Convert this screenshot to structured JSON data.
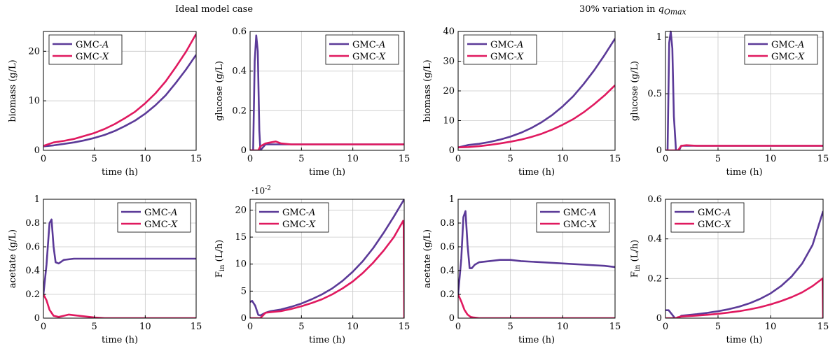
{
  "titles": {
    "left": "Ideal model case",
    "right": "30% variation in q_Omax"
  },
  "colors": {
    "gmc_a": "#5b3a98",
    "gmc_x": "#e0195f",
    "grid": "#c8c8c8"
  },
  "chart_data": [
    {
      "id": "p1",
      "type": "line",
      "ylabel": "biomass (g/L)",
      "xlabel": "time (h)",
      "xlim": [
        0,
        15
      ],
      "ylim": [
        0,
        24
      ],
      "xticks": [
        0,
        5,
        10,
        15
      ],
      "yticks": [
        0,
        10,
        20
      ],
      "legend": "top-left",
      "grid": true,
      "series": [
        {
          "name": "GMC-A",
          "x": [
            0,
            1,
            2,
            3,
            4,
            5,
            6,
            7,
            8,
            9,
            10,
            11,
            12,
            13,
            14,
            15
          ],
          "y": [
            0.8,
            1.0,
            1.3,
            1.6,
            2.0,
            2.5,
            3.1,
            3.9,
            4.9,
            6.0,
            7.4,
            9.1,
            11.1,
            13.6,
            16.3,
            19.3
          ]
        },
        {
          "name": "GMC-X",
          "x": [
            0,
            1,
            2,
            3,
            4,
            5,
            6,
            7,
            8,
            9,
            10,
            11,
            12,
            13,
            14,
            15
          ],
          "y": [
            0.9,
            1.6,
            1.9,
            2.3,
            2.9,
            3.5,
            4.3,
            5.3,
            6.5,
            7.8,
            9.5,
            11.5,
            13.9,
            16.8,
            19.9,
            23.5
          ]
        }
      ]
    },
    {
      "id": "p2",
      "type": "line",
      "ylabel": "glucose (g/L)",
      "xlabel": "time (h)",
      "xlim": [
        0,
        15
      ],
      "ylim": [
        0,
        0.6
      ],
      "xticks": [
        0,
        5,
        10,
        15
      ],
      "yticks": [
        0,
        0.2,
        0.4,
        0.6
      ],
      "legend": "top-right",
      "grid": true,
      "series": [
        {
          "name": "GMC-A",
          "x": [
            0,
            0.3,
            0.45,
            0.6,
            0.75,
            0.9,
            1.0,
            1.5,
            2.5,
            4,
            6,
            8,
            10,
            12,
            15
          ],
          "y": [
            0,
            0,
            0.45,
            0.58,
            0.5,
            0.1,
            0,
            0.03,
            0.03,
            0.03,
            0.03,
            0.03,
            0.03,
            0.03,
            0.03
          ]
        },
        {
          "name": "GMC-X",
          "x": [
            0,
            0.8,
            1.0,
            1.5,
            2.0,
            2.5,
            3,
            4,
            6,
            8,
            10,
            12,
            15
          ],
          "y": [
            0,
            0,
            0.02,
            0.035,
            0.04,
            0.045,
            0.035,
            0.03,
            0.03,
            0.03,
            0.03,
            0.03,
            0.03
          ]
        }
      ]
    },
    {
      "id": "p3",
      "type": "line",
      "ylabel": "biomass (g/L)",
      "xlabel": "time (h)",
      "xlim": [
        0,
        15
      ],
      "ylim": [
        0,
        40
      ],
      "xticks": [
        0,
        5,
        10,
        15
      ],
      "yticks": [
        0,
        10,
        20,
        30,
        40
      ],
      "legend": "top-left",
      "grid": true,
      "series": [
        {
          "name": "GMC-A",
          "x": [
            0,
            1,
            2,
            3,
            4,
            5,
            6,
            7,
            8,
            9,
            10,
            11,
            12,
            13,
            14,
            15
          ],
          "y": [
            1.0,
            1.8,
            2.2,
            2.8,
            3.6,
            4.6,
            5.9,
            7.5,
            9.5,
            11.9,
            14.8,
            18.2,
            22.3,
            26.9,
            32.1,
            37.6
          ]
        },
        {
          "name": "GMC-X",
          "x": [
            0,
            1,
            2,
            3,
            4,
            5,
            6,
            7,
            8,
            9,
            10,
            11,
            12,
            13,
            14,
            15
          ],
          "y": [
            1.0,
            1.1,
            1.4,
            1.8,
            2.3,
            2.9,
            3.6,
            4.5,
            5.6,
            7.0,
            8.6,
            10.5,
            12.8,
            15.5,
            18.5,
            21.9
          ]
        }
      ]
    },
    {
      "id": "p4",
      "type": "line",
      "ylabel": "glucose (g/L)",
      "xlabel": "time (h)",
      "xlim": [
        0,
        15
      ],
      "ylim": [
        0,
        1.05
      ],
      "xticks": [
        0,
        5,
        10,
        15
      ],
      "yticks": [
        0,
        0.5,
        1
      ],
      "legend": "top-right",
      "grid": true,
      "series": [
        {
          "name": "GMC-A",
          "x": [
            0,
            0.2,
            0.35,
            0.5,
            0.65,
            0.8,
            1.0,
            1.3,
            1.5,
            2,
            4,
            6,
            8,
            10,
            12,
            15
          ],
          "y": [
            0,
            0,
            0.95,
            1.05,
            0.9,
            0.3,
            0,
            0,
            0.04,
            0.04,
            0.04,
            0.04,
            0.04,
            0.04,
            0.04,
            0.04
          ]
        },
        {
          "name": "GMC-X",
          "x": [
            0,
            1.2,
            1.5,
            2,
            3,
            4,
            6,
            8,
            10,
            12,
            15
          ],
          "y": [
            0,
            0,
            0.04,
            0.045,
            0.04,
            0.04,
            0.04,
            0.04,
            0.04,
            0.04,
            0.04
          ]
        }
      ]
    },
    {
      "id": "p5",
      "type": "line",
      "ylabel": "acetate (g/L)",
      "xlabel": "time (h)",
      "xlim": [
        0,
        15
      ],
      "ylim": [
        0,
        1
      ],
      "xticks": [
        0,
        5,
        10,
        15
      ],
      "yticks": [
        0,
        0.2,
        0.4,
        0.6,
        0.8,
        1
      ],
      "legend": "top-right",
      "grid": true,
      "series": [
        {
          "name": "GMC-A",
          "x": [
            0,
            0.3,
            0.6,
            0.8,
            1.0,
            1.2,
            1.5,
            2,
            3,
            4,
            5,
            6,
            8,
            10,
            12,
            15
          ],
          "y": [
            0.2,
            0.45,
            0.8,
            0.83,
            0.6,
            0.47,
            0.46,
            0.49,
            0.5,
            0.5,
            0.5,
            0.5,
            0.5,
            0.5,
            0.5,
            0.5
          ]
        },
        {
          "name": "GMC-X",
          "x": [
            0,
            0.3,
            0.6,
            1.0,
            1.5,
            2.0,
            2.5,
            3,
            4,
            5,
            6,
            8,
            10,
            15
          ],
          "y": [
            0.2,
            0.15,
            0.07,
            0.02,
            0.01,
            0.02,
            0.03,
            0.025,
            0.015,
            0.005,
            0,
            0,
            0,
            0
          ]
        }
      ]
    },
    {
      "id": "p6",
      "type": "line",
      "ylabel": "F_in (L/h)",
      "xlabel": "time (h)",
      "multiplier": "·10^-2",
      "xlim": [
        0,
        15
      ],
      "ylim": [
        0,
        22
      ],
      "xticks": [
        0,
        5,
        10,
        15
      ],
      "yticks": [
        0,
        5,
        10,
        15,
        20
      ],
      "legend": "top-left",
      "grid": true,
      "series": [
        {
          "name": "GMC-A",
          "x": [
            0,
            0.2,
            0.5,
            0.8,
            1.0,
            1.5,
            2,
            3,
            4,
            5,
            6,
            7,
            8,
            9,
            10,
            11,
            12,
            13,
            14,
            15
          ],
          "y": [
            3.0,
            3.2,
            2.3,
            0.6,
            0.5,
            1.0,
            1.3,
            1.6,
            2.1,
            2.7,
            3.5,
            4.4,
            5.5,
            6.9,
            8.6,
            10.6,
            13.0,
            15.8,
            18.8,
            22.0
          ]
        },
        {
          "name": "GMC-X",
          "x": [
            0,
            0.5,
            1.0,
            1.5,
            2,
            3,
            4,
            5,
            6,
            7,
            8,
            9,
            10,
            11,
            12,
            13,
            14,
            14.9,
            14.95,
            15
          ],
          "y": [
            0,
            0,
            0,
            1.0,
            1.1,
            1.3,
            1.7,
            2.2,
            2.8,
            3.5,
            4.4,
            5.5,
            6.8,
            8.4,
            10.3,
            12.5,
            15.0,
            18.0,
            17.0,
            0
          ]
        }
      ]
    },
    {
      "id": "p7",
      "type": "line",
      "ylabel": "acetate (g/L)",
      "xlabel": "time (h)",
      "xlim": [
        0,
        15
      ],
      "ylim": [
        0,
        1
      ],
      "xticks": [
        0,
        5,
        10,
        15
      ],
      "yticks": [
        0,
        0.2,
        0.4,
        0.6,
        0.8,
        1
      ],
      "legend": "top-right",
      "grid": true,
      "series": [
        {
          "name": "GMC-A",
          "x": [
            0,
            0.3,
            0.5,
            0.7,
            0.9,
            1.1,
            1.3,
            1.6,
            2,
            3,
            4,
            5,
            6,
            8,
            10,
            12,
            14,
            15
          ],
          "y": [
            0.2,
            0.5,
            0.85,
            0.9,
            0.62,
            0.42,
            0.42,
            0.45,
            0.47,
            0.48,
            0.49,
            0.49,
            0.48,
            0.47,
            0.46,
            0.45,
            0.44,
            0.43
          ]
        },
        {
          "name": "GMC-X",
          "x": [
            0,
            0.3,
            0.6,
            0.9,
            1.2,
            1.5,
            2,
            3,
            15
          ],
          "y": [
            0.2,
            0.14,
            0.07,
            0.03,
            0.01,
            0.005,
            0,
            0,
            0
          ]
        }
      ]
    },
    {
      "id": "p8",
      "type": "line",
      "ylabel": "F_in (L/h)",
      "xlabel": "time (h)",
      "xlim": [
        0,
        15
      ],
      "ylim": [
        0,
        0.6
      ],
      "xticks": [
        0,
        5,
        10,
        15
      ],
      "yticks": [
        0,
        0.2,
        0.4,
        0.6
      ],
      "legend": "top-left",
      "grid": true,
      "series": [
        {
          "name": "GMC-A",
          "x": [
            0,
            0.3,
            0.6,
            0.9,
            1.2,
            1.5,
            2,
            3,
            4,
            5,
            6,
            7,
            8,
            9,
            10,
            11,
            12,
            13,
            14,
            15
          ],
          "y": [
            0.04,
            0.04,
            0.02,
            0.0,
            0.0,
            0.012,
            0.015,
            0.02,
            0.027,
            0.035,
            0.045,
            0.058,
            0.075,
            0.097,
            0.125,
            0.162,
            0.21,
            0.275,
            0.37,
            0.54
          ]
        },
        {
          "name": "GMC-X",
          "x": [
            0,
            1.0,
            1.2,
            1.5,
            2,
            3,
            4,
            5,
            6,
            7,
            8,
            9,
            10,
            11,
            12,
            13,
            14,
            14.95,
            15
          ],
          "y": [
            0,
            0,
            0.005,
            0.008,
            0.01,
            0.013,
            0.017,
            0.022,
            0.028,
            0.035,
            0.044,
            0.055,
            0.069,
            0.086,
            0.106,
            0.13,
            0.162,
            0.2,
            0
          ]
        }
      ]
    }
  ]
}
